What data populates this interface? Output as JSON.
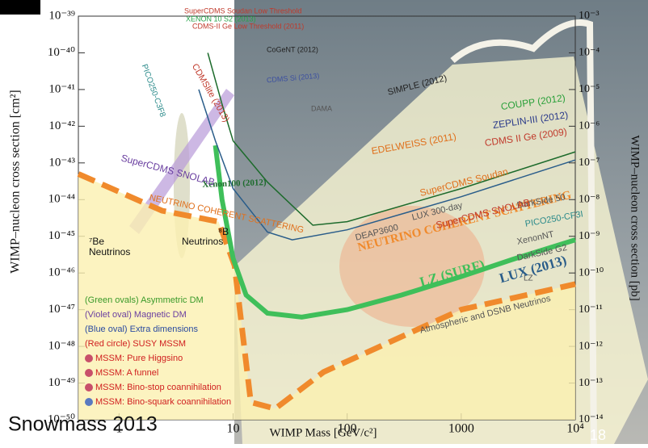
{
  "chart_data": {
    "type": "line",
    "xscale": "log",
    "yscale": "log",
    "xlabel": "WIMP Mass [GeV/c²]",
    "ylabel": "WIMP–nucleon cross section [cm²]",
    "y2label": "WIMP–nucleon cross section [pb]",
    "xlim": [
      0.44,
      10000
    ],
    "ylim": [
      1e-50,
      1e-39
    ],
    "y2lim": [
      1e-14,
      0.001
    ],
    "xticks": [
      1,
      10,
      100,
      1000,
      {
        "value": 10000,
        "label": "10⁴"
      }
    ],
    "yticks": [
      {
        "value": 1e-50,
        "label": "10⁻⁵⁰"
      },
      {
        "value": 1e-49,
        "label": "10⁻⁴⁹"
      },
      {
        "value": 1e-48,
        "label": "10⁻⁴⁸"
      },
      {
        "value": 1e-47,
        "label": "10⁻⁴⁷"
      },
      {
        "value": 1e-46,
        "label": "10⁻⁴⁶"
      },
      {
        "value": 1e-45,
        "label": "10⁻⁴⁵"
      },
      {
        "value": 1e-44,
        "label": "10⁻⁴⁴"
      },
      {
        "value": 1e-43,
        "label": "10⁻⁴³"
      },
      {
        "value": 1e-42,
        "label": "10⁻⁴²"
      },
      {
        "value": 1e-41,
        "label": "10⁻⁴¹"
      },
      {
        "value": 1e-40,
        "label": "10⁻⁴⁰"
      },
      {
        "value": 1e-39,
        "label": "10⁻³⁹"
      }
    ],
    "y2ticks": [
      {
        "value": 1e-14,
        "label": "10⁻¹⁴"
      },
      {
        "value": 1e-13,
        "label": "10⁻¹³"
      },
      {
        "value": 1e-12,
        "label": "10⁻¹²"
      },
      {
        "value": 1e-11,
        "label": "10⁻¹¹"
      },
      {
        "value": 1e-10,
        "label": "10⁻¹⁰"
      },
      {
        "value": 1e-09,
        "label": "10⁻⁹"
      },
      {
        "value": 1e-08,
        "label": "10⁻⁸"
      },
      {
        "value": 1e-07,
        "label": "10⁻⁷"
      },
      {
        "value": 1e-06,
        "label": "10⁻⁶"
      },
      {
        "value": 1e-05,
        "label": "10⁻⁵"
      },
      {
        "value": 0.0001,
        "label": "10⁻⁴"
      },
      {
        "value": 0.001,
        "label": "10⁻³"
      }
    ],
    "series": [
      {
        "name": "NEUTRINO COHERENT SCATTERING",
        "color": "#f08a2c",
        "width": 7,
        "dash": "22 10",
        "fill": "#fbf0b0",
        "x": [
          0.44,
          2.38,
          7.45,
          10.3,
          14.3,
          23.4,
          62,
          1000,
          10000
        ],
        "values": [
          5e-44,
          5e-45,
          2.5e-45,
          1.6e-46,
          3e-50,
          2e-50,
          2e-49,
          1e-47,
          5e-47
        ]
      },
      {
        "name": "LZ (SURF)",
        "color": "#3fbf5a",
        "width": 6,
        "x": [
          7,
          8,
          10,
          13,
          20,
          40,
          100,
          300,
          1000,
          3000,
          10000
        ],
        "values": [
          3e-43,
          1e-44,
          2.5e-46,
          2.5e-47,
          8e-48,
          6.3e-48,
          1e-47,
          2.5e-47,
          8e-47,
          2.5e-46,
          8e-46
        ]
      },
      {
        "name": "LUX (2013)",
        "color": "#2a5d8a",
        "width": 1.5,
        "x": [
          5,
          7,
          10,
          20,
          33,
          100,
          1000,
          10000
        ],
        "values": [
          1e-41,
          4e-43,
          2e-44,
          1.3e-45,
          8e-46,
          1.5e-45,
          1.2e-44,
          1.2e-43
        ]
      },
      {
        "name": "Xenon100 (2012)",
        "color": "#1d6b2c",
        "width": 1.5,
        "x": [
          6,
          8,
          10,
          20,
          50,
          100,
          1000,
          10000
        ],
        "values": [
          1e-40,
          4e-42,
          4e-43,
          3e-44,
          2e-45,
          2.5e-45,
          2e-44,
          2e-43
        ]
      }
    ],
    "annotations": [
      {
        "text": "SuperCDMS Soudan Low Threshold",
        "color": "#c0392b"
      },
      {
        "text": "XENON 10 S2 (2013)",
        "color": "#27a34a"
      },
      {
        "text": "CDMS-II Ge Low Threshold (2011)",
        "color": "#c0392b"
      },
      {
        "text": "CoGeNT (2012)",
        "color": "#222"
      },
      {
        "text": "CDMS Si (2013)",
        "color": "#3b4fa0"
      },
      {
        "text": "DAMA",
        "color": "#555"
      },
      {
        "text": "SIMPLE (2012)",
        "color": "#222"
      },
      {
        "text": "COUPP (2012)",
        "color": "#2aa03a"
      },
      {
        "text": "ZEPLIN-III (2012)",
        "color": "#2a3a8a"
      },
      {
        "text": "CDMS II Ge (2009)",
        "color": "#c0392b"
      },
      {
        "text": "EDELWEISS (2011)",
        "color": "#e0701c"
      },
      {
        "text": "DarkSide 50",
        "color": "#555"
      },
      {
        "text": "PICO250-CF3I",
        "color": "#2a8a8a"
      },
      {
        "text": "SuperCDMS Soudan",
        "color": "#e0701c"
      },
      {
        "text": "LUX 300-day",
        "color": "#555"
      },
      {
        "text": "DEAP3600",
        "color": "#555"
      },
      {
        "text": "SuperCDMS SNOLAB",
        "color": "#c0392b"
      },
      {
        "text": "XenonNT",
        "color": "#555"
      },
      {
        "text": "DarkSide G2",
        "color": "#555"
      },
      {
        "text": "LZ",
        "color": "#555"
      },
      {
        "text": "CDMSlite (2013)",
        "color": "#c0392b"
      },
      {
        "text": "PICO250-C3F8",
        "color": "#2a8a8a"
      },
      {
        "text": "SuperCDMS SNOLAB",
        "color": "#6a3fa0"
      },
      {
        "text": "NEUTRINO COHERENT SCATTERING",
        "color": "#e0701c"
      },
      {
        "text": "Atmospheric and DSNB Neutrinos",
        "color": "#555"
      },
      {
        "text": "⁷Be",
        "color": "#111"
      },
      {
        "text": "Neutrinos",
        "color": "#111"
      },
      {
        "text": "⁸B",
        "color": "#111"
      },
      {
        "text": "Neutrinos",
        "color": "#111"
      },
      {
        "text": "(Green ovals) Asymmetric DM",
        "color": "#3a9a2a"
      },
      {
        "text": "(Violet oval) Magnetic DM",
        "color": "#6a3fa0"
      },
      {
        "text": "(Blue oval) Extra dimensions",
        "color": "#2a4aa0"
      },
      {
        "text": "(Red circle) SUSY MSSM",
        "color": "#d02020"
      },
      {
        "text": "MSSM: Pure Higgsino",
        "color": "#d02020"
      },
      {
        "text": "MSSM: A funnel",
        "color": "#d02020"
      },
      {
        "text": "MSSM: Bino-stop coannihilation",
        "color": "#d02020"
      },
      {
        "text": "MSSM: Bino-squark coannihilation",
        "color": "#d02020"
      }
    ]
  },
  "footer": {
    "source": "Snowmass 2013",
    "page": "18"
  }
}
